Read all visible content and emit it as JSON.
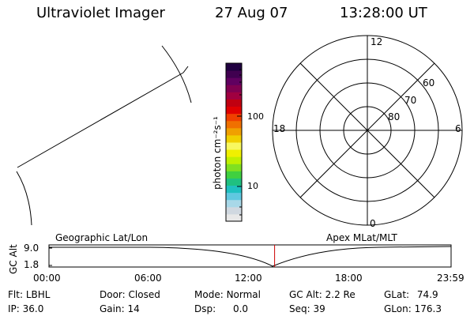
{
  "header": {
    "instrument": "Ultraviolet Imager",
    "date": "27 Aug 07",
    "time": "13:28:00 UT"
  },
  "colorbar": {
    "unit_label": "photon cm⁻²s⁻¹",
    "tick_labels": [
      "100",
      "10"
    ],
    "colors": [
      "#e8e8e8",
      "#d0d8e0",
      "#a8d8e8",
      "#60c8e0",
      "#20c0c0",
      "#20c080",
      "#40d040",
      "#80e020",
      "#c0f000",
      "#f0f000",
      "#f8f860",
      "#f0d000",
      "#f0a000",
      "#f07000",
      "#f04000",
      "#e00000",
      "#c00010",
      "#a00040",
      "#800050",
      "#600060",
      "#400050",
      "#200040"
    ]
  },
  "polar_plot": {
    "local_time_labels": {
      "top": "12",
      "left": "18",
      "right": "6",
      "bottom": "0"
    },
    "latitude_labels": [
      "60",
      "70",
      "80"
    ]
  },
  "timeline": {
    "ylabel": "GC Alt",
    "y_ticks": [
      "9.0",
      "1.8"
    ],
    "left_label": "Geographic Lat/Lon",
    "right_label": "Apex MLat/MLT",
    "x_ticks": [
      "00:00",
      "06:00",
      "12:00",
      "18:00",
      "23:59"
    ],
    "current_time_fraction": 0.5611,
    "marker_color": "#cc0000"
  },
  "status": {
    "filter": {
      "label": "Flt:",
      "value": "LBHL"
    },
    "ip": {
      "label": "IP:",
      "value": "36.0"
    },
    "door": {
      "label": "Door:",
      "value": "Closed"
    },
    "gain": {
      "label": "Gain:",
      "value": "14"
    },
    "mode": {
      "label": "Mode:",
      "value": "Normal"
    },
    "dsp": {
      "label": "Dsp:",
      "value": "0.0"
    },
    "gc_alt": {
      "label": "GC Alt:",
      "value": "2.2 Re"
    },
    "seq": {
      "label": "Seq:",
      "value": "39"
    },
    "glat": {
      "label": "GLat:",
      "value": "74.9"
    },
    "glon": {
      "label": "GLon:",
      "value": "176.3"
    }
  }
}
